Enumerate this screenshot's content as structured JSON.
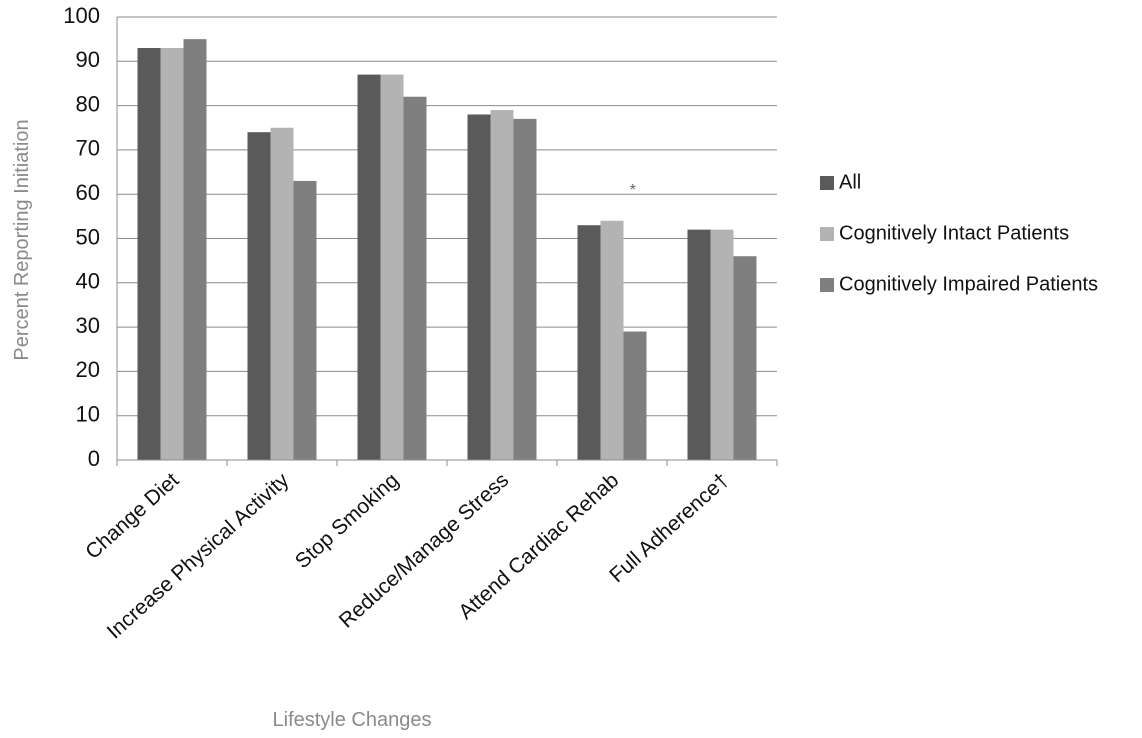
{
  "chart_data": {
    "type": "bar",
    "title": "",
    "xlabel": "Lifestyle Changes",
    "ylabel": "Percent Reporting Initiation",
    "ylim": [
      0,
      100
    ],
    "yticks": [
      0,
      10,
      20,
      30,
      40,
      50,
      60,
      70,
      80,
      90,
      100
    ],
    "grid": true,
    "legend_position": "right",
    "categories": [
      "Change Diet",
      "Increase Physical Activity",
      "Stop Smoking",
      "Reduce/Manage Stress",
      "Attend Cardiac Rehab",
      "Full Adherence†"
    ],
    "series": [
      {
        "name": "All",
        "color": "#5a5a5a",
        "values": [
          93,
          74,
          87,
          78,
          53,
          52
        ]
      },
      {
        "name": "Cognitively Intact Patients",
        "color": "#b3b3b3",
        "values": [
          93,
          75,
          87,
          79,
          54,
          52
        ]
      },
      {
        "name": "Cognitively Impaired Patients",
        "color": "#7f7f7f",
        "values": [
          95,
          63,
          82,
          77,
          29,
          46
        ]
      }
    ],
    "annotations": [
      {
        "text": "*",
        "category_index": 4
      }
    ]
  }
}
